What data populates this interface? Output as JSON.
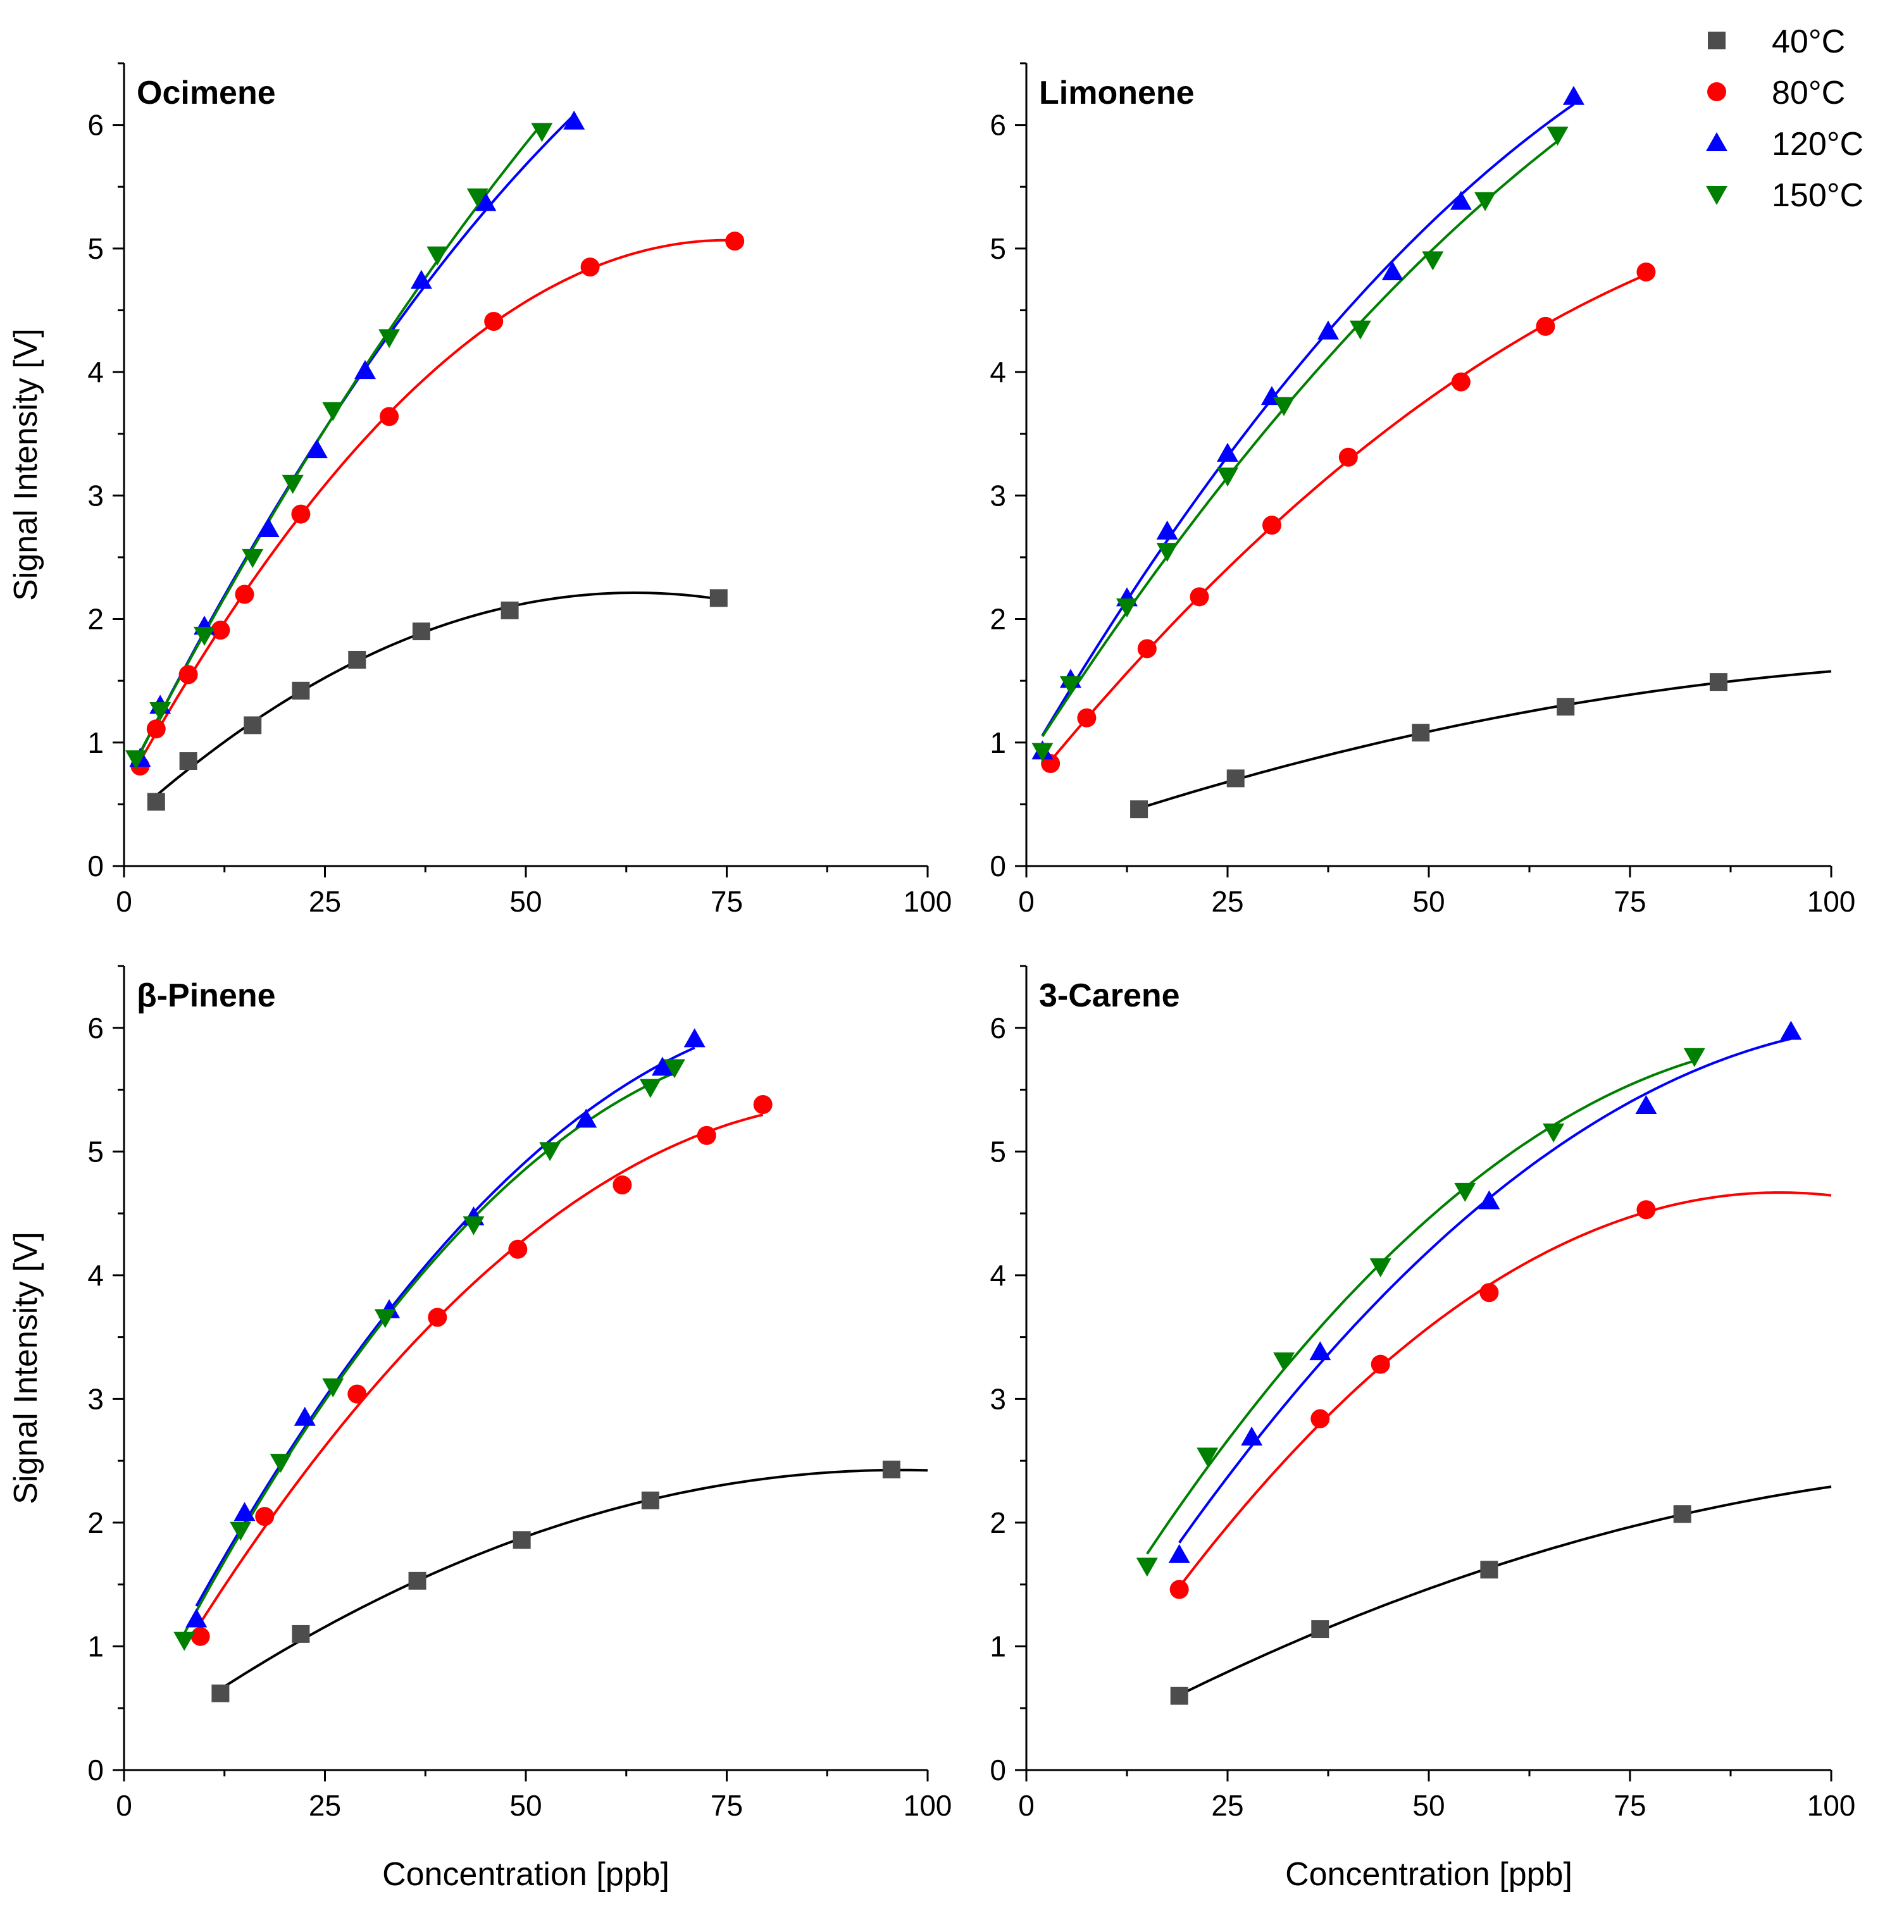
{
  "figure": {
    "xlabel": "Concentration [ppb]",
    "ylabel": "Signal Intensity [V]"
  },
  "legend": {
    "position": "top-right",
    "entries": [
      {
        "name": "40°C",
        "marker": "square",
        "color": "#4d4d4d",
        "line": "#000000"
      },
      {
        "name": "80°C",
        "marker": "circle",
        "color": "#ff0000",
        "line": "#ff0000"
      },
      {
        "name": "120°C",
        "marker": "triangle-up",
        "color": "#0000ff",
        "line": "#0000ff"
      },
      {
        "name": "150°C",
        "marker": "triangle-down",
        "color": "#008000",
        "line": "#008000"
      }
    ]
  },
  "chart_data": [
    {
      "type": "scatter",
      "title": "Ocimene",
      "xlabel": "",
      "ylabel": "Signal Intensity [V]",
      "xlim": [
        0,
        100
      ],
      "ylim": [
        0,
        6.5
      ],
      "xticks": [
        "0",
        "25",
        "50",
        "75",
        "100"
      ],
      "yticks": [
        "0",
        "1",
        "2",
        "3",
        "4",
        "5",
        "6"
      ],
      "series": [
        {
          "name": "40°C",
          "x": [
            4,
            8,
            16,
            22,
            29,
            37,
            48,
            74
          ],
          "y": [
            0.52,
            0.85,
            1.14,
            1.42,
            1.67,
            1.9,
            2.07,
            2.17
          ],
          "fit_xmax": 74
        },
        {
          "name": "80°C",
          "x": [
            2,
            4,
            8,
            12,
            15,
            22,
            33,
            46,
            58,
            76
          ],
          "y": [
            0.81,
            1.11,
            1.55,
            1.91,
            2.2,
            2.85,
            3.64,
            4.41,
            4.85,
            5.06
          ],
          "fit_xmax": 76
        },
        {
          "name": "120°C",
          "x": [
            2,
            4.5,
            10,
            18,
            24,
            30,
            37,
            45,
            56
          ],
          "y": [
            0.87,
            1.3,
            1.94,
            2.73,
            3.37,
            4.01,
            4.74,
            5.37,
            6.03
          ],
          "fit_xmax": 56
        },
        {
          "name": "150°C",
          "x": [
            1.5,
            4.5,
            10,
            16,
            21,
            26,
            33,
            39,
            44,
            52
          ],
          "y": [
            0.87,
            1.26,
            1.87,
            2.5,
            3.1,
            3.69,
            4.28,
            4.95,
            5.42,
            5.95
          ],
          "fit_xmax": 52
        }
      ]
    },
    {
      "type": "scatter",
      "title": "Limonene",
      "xlabel": "",
      "ylabel": "",
      "xlim": [
        0,
        100
      ],
      "ylim": [
        0,
        6.5
      ],
      "xticks": [
        "0",
        "25",
        "50",
        "75",
        "100"
      ],
      "yticks": [
        "0",
        "1",
        "2",
        "3",
        "4",
        "5",
        "6"
      ],
      "series": [
        {
          "name": "40°C",
          "x": [
            14,
            26,
            49,
            67,
            86
          ],
          "y": [
            0.46,
            0.71,
            1.08,
            1.29,
            1.49
          ],
          "fit_xmax": 100
        },
        {
          "name": "80°C",
          "x": [
            3,
            7.5,
            15,
            21.5,
            30.5,
            40,
            54,
            64.5,
            77
          ],
          "y": [
            0.83,
            1.2,
            1.76,
            2.18,
            2.76,
            3.31,
            3.92,
            4.37,
            4.81
          ],
          "fit_xmax": 77
        },
        {
          "name": "120°C",
          "x": [
            2,
            5.5,
            12.5,
            17.5,
            25,
            30.5,
            37.5,
            45.5,
            54,
            68
          ],
          "y": [
            0.93,
            1.51,
            2.17,
            2.71,
            3.34,
            3.8,
            4.33,
            4.81,
            5.38,
            6.23
          ],
          "fit_xmax": 68
        },
        {
          "name": "150°C",
          "x": [
            2,
            5.5,
            12.5,
            17.5,
            25,
            32,
            41.5,
            50.5,
            57,
            66
          ],
          "y": [
            0.93,
            1.47,
            2.1,
            2.55,
            3.16,
            3.73,
            4.35,
            4.91,
            5.39,
            5.92
          ],
          "fit_xmax": 66
        }
      ]
    },
    {
      "type": "scatter",
      "title": "β-Pinene",
      "xlabel": "Concentration [ppb]",
      "ylabel": "Signal Intensity [V]",
      "xlim": [
        0,
        100
      ],
      "ylim": [
        0,
        6.5
      ],
      "xticks": [
        "0",
        "25",
        "50",
        "75",
        "100"
      ],
      "yticks": [
        "0",
        "1",
        "2",
        "3",
        "4",
        "5",
        "6"
      ],
      "series": [
        {
          "name": "40°C",
          "x": [
            12,
            22,
            36.5,
            49.5,
            65.5,
            95.5
          ],
          "y": [
            0.62,
            1.1,
            1.53,
            1.86,
            2.18,
            2.43
          ],
          "fit_xmax": 100
        },
        {
          "name": "80°C",
          "x": [
            9.5,
            17.5,
            29,
            39,
            49,
            62,
            72.5,
            79.5
          ],
          "y": [
            1.08,
            2.05,
            3.04,
            3.66,
            4.21,
            4.73,
            5.13,
            5.38
          ],
          "fit_xmax": 79.5
        },
        {
          "name": "120°C",
          "x": [
            9,
            15,
            22.5,
            33,
            43.5,
            57.5,
            67,
            71
          ],
          "y": [
            1.22,
            2.08,
            2.85,
            3.72,
            4.47,
            5.26,
            5.68,
            5.91
          ],
          "fit_xmax": 71
        },
        {
          "name": "150°C",
          "x": [
            7.5,
            14.5,
            19.5,
            26,
            32.5,
            43.5,
            53,
            65.5,
            68.5
          ],
          "y": [
            1.05,
            1.94,
            2.49,
            3.1,
            3.66,
            4.41,
            5.01,
            5.52,
            5.68
          ],
          "fit_xmax": 68.5
        }
      ]
    },
    {
      "type": "scatter",
      "title": "3-Carene",
      "xlabel": "Concentration [ppb]",
      "ylabel": "",
      "xlim": [
        0,
        100
      ],
      "ylim": [
        0,
        6.5
      ],
      "xticks": [
        "0",
        "25",
        "50",
        "75",
        "100"
      ],
      "yticks": [
        "0",
        "1",
        "2",
        "3",
        "4",
        "5",
        "6"
      ],
      "series": [
        {
          "name": "40°C",
          "x": [
            19,
            36.5,
            57.5,
            81.5
          ],
          "y": [
            0.6,
            1.14,
            1.62,
            2.07
          ],
          "fit_xmax": 100
        },
        {
          "name": "80°C",
          "x": [
            19,
            36.5,
            44,
            57.5,
            77
          ],
          "y": [
            1.46,
            2.84,
            3.28,
            3.86,
            4.53
          ],
          "fit_xmax": 100
        },
        {
          "name": "120°C",
          "x": [
            19,
            28,
            36.5,
            57.5,
            77,
            95
          ],
          "y": [
            1.74,
            2.69,
            3.38,
            4.6,
            5.37,
            5.97
          ],
          "fit_xmax": 95
        },
        {
          "name": "150°C",
          "x": [
            15,
            22.5,
            32,
            44,
            54.5,
            65.5,
            83
          ],
          "y": [
            1.65,
            2.54,
            3.31,
            4.07,
            4.68,
            5.16,
            5.77
          ],
          "fit_xmax": 83
        }
      ]
    }
  ]
}
